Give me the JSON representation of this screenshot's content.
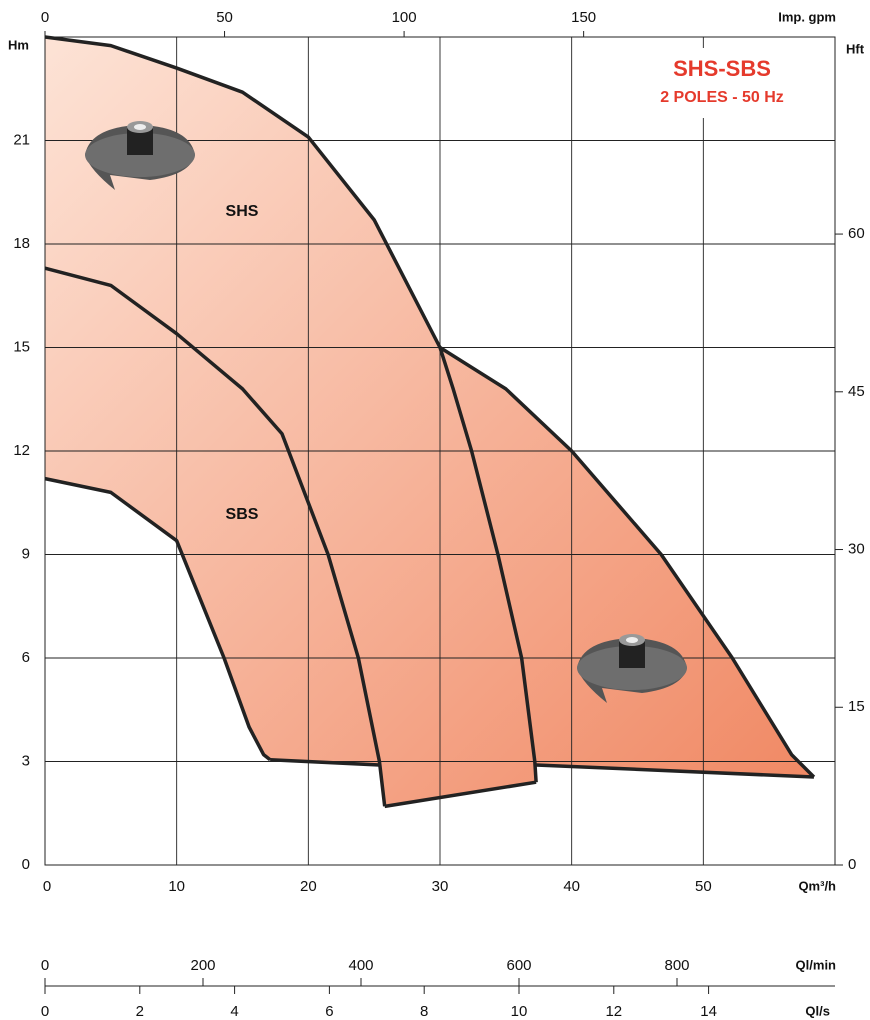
{
  "chart_data": {
    "type": "line",
    "title": "SHS-SBS",
    "subtitle": "2 POLES - 50 Hz",
    "y_label": "Hm",
    "y2_label": "Hft",
    "x_label": "Qm³/h",
    "x2_label": "Imp. gpm",
    "x3_label": "Ql/min",
    "x4_label": "Ql/s",
    "annotations": [
      "SHS",
      "SBS"
    ],
    "xlim": [
      0,
      60
    ],
    "xticks": [
      0,
      10,
      20,
      30,
      40,
      50
    ],
    "ylim": [
      0,
      24
    ],
    "yticks": [
      0,
      3,
      6,
      9,
      12,
      15,
      18,
      21
    ],
    "x2lim": [
      0,
      220
    ],
    "x2ticks": [
      0,
      50,
      100,
      150
    ],
    "y2lim": [
      0,
      78.74
    ],
    "y2ticks": [
      0,
      15,
      30,
      45,
      60
    ],
    "x3lim": [
      0,
      1000
    ],
    "x3ticks": [
      0,
      200,
      400,
      600,
      800
    ],
    "x4lim": [
      0,
      16.667
    ],
    "x4ticks": [
      0,
      2,
      4,
      6,
      8,
      10,
      12,
      14
    ],
    "grid": true,
    "color": "#222222",
    "fill_colors": [
      "#fde3d6",
      "#f08762"
    ],
    "title_color": "#e53a2c",
    "series": [
      {
        "x": [
          0,
          5,
          10,
          15,
          20,
          25,
          30
        ],
        "values": [
          24,
          23.75,
          23.1,
          22.4,
          21.1,
          18.7,
          15
        ]
      },
      {
        "x": [
          30,
          31,
          32.4,
          34.4,
          36.2,
          37.2,
          37.3
        ],
        "values": [
          15,
          13.8,
          12,
          9,
          6,
          3,
          2.4
        ]
      },
      {
        "x": [
          30,
          35,
          40,
          46.8,
          52.2,
          56.7,
          58.4
        ],
        "values": [
          15,
          13.8,
          12,
          9,
          6,
          3.2,
          2.55
        ]
      },
      {
        "x": [
          37.3,
          58.4
        ],
        "values": [
          2.9,
          2.55
        ]
      },
      {
        "x": [
          0,
          5,
          10,
          15,
          18,
          21.5,
          23.8,
          25.4,
          25.8
        ],
        "values": [
          17.3,
          16.8,
          15.4,
          13.8,
          12.5,
          9,
          6,
          3,
          1.7
        ]
      },
      {
        "x": [
          25.8,
          37.3
        ],
        "values": [
          1.7,
          2.4
        ]
      },
      {
        "x": [
          0,
          5,
          10,
          13.6,
          15.5,
          16.6,
          17.1
        ],
        "values": [
          11.2,
          10.8,
          9.4,
          6,
          4,
          3.2,
          3.05
        ]
      },
      {
        "x": [
          17.1,
          25.4
        ],
        "values": [
          3.05,
          2.9
        ]
      }
    ]
  }
}
